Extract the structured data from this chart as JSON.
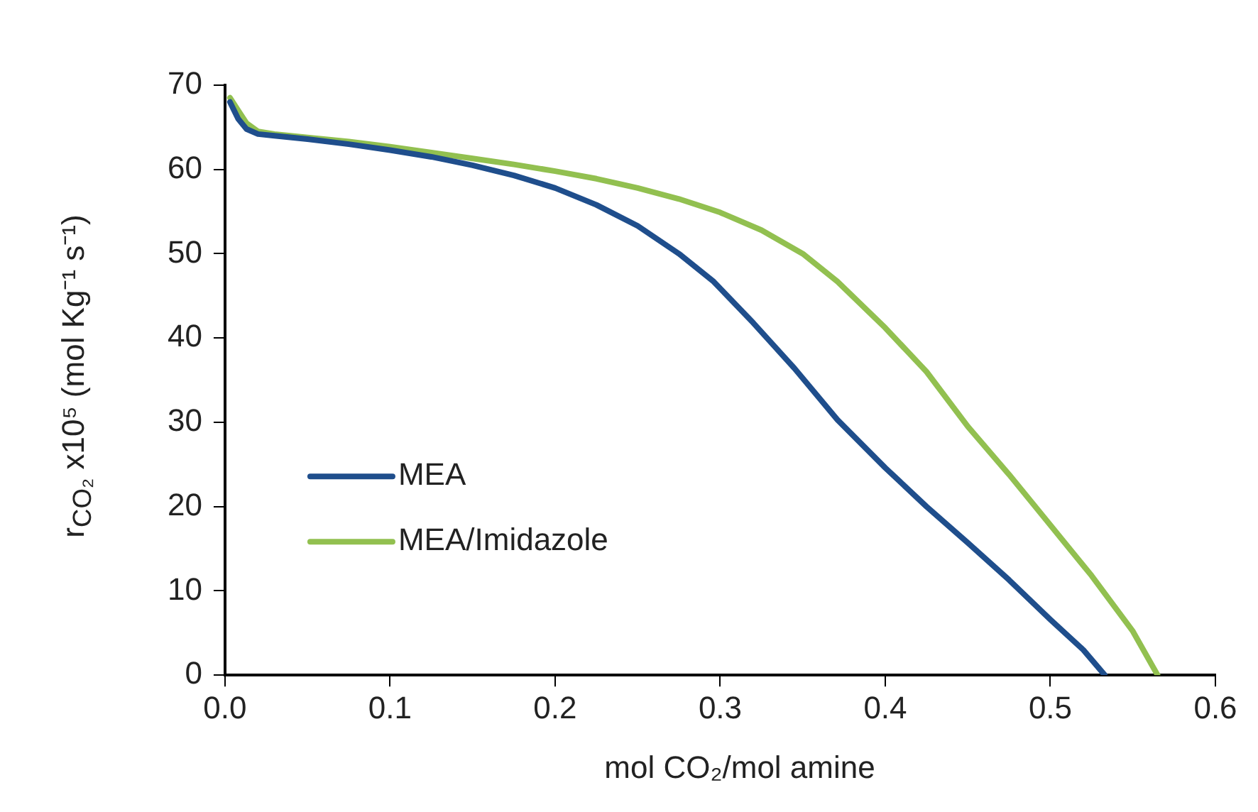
{
  "chart_data": {
    "type": "line",
    "xlabel": "mol CO₂/mol amine",
    "ylabel": "r$_{CO₂}$ x10⁵ (mol Kg⁻¹ s⁻¹)",
    "xlim": [
      0,
      0.6
    ],
    "xticks": [
      {
        "value": 0,
        "label": "0.0"
      },
      0.1,
      0.2,
      0.3,
      0.4,
      0.5,
      0.6
    ],
    "ylim": [
      0,
      70
    ],
    "yticks": [
      0,
      10,
      20,
      30,
      40,
      50,
      60,
      70
    ],
    "grid": false,
    "legend": "bottom left",
    "marker": "none",
    "line_style": "solid",
    "series": [
      {
        "name": "MEA",
        "color": "#1f4e8c",
        "x": [
          0.003,
          0.008,
          0.013,
          0.02,
          0.03,
          0.05,
          0.075,
          0.1,
          0.125,
          0.15,
          0.175,
          0.2,
          0.225,
          0.25,
          0.275,
          0.296,
          0.32,
          0.345,
          0.371,
          0.4,
          0.425,
          0.45,
          0.475,
          0.5,
          0.52,
          0.533
        ],
        "values": [
          68,
          66,
          64.8,
          64.2,
          64,
          63.6,
          63,
          62.3,
          61.5,
          60.5,
          59.3,
          57.8,
          55.8,
          53.3,
          50,
          46.7,
          41.8,
          36.4,
          30.3,
          24.6,
          20,
          15.7,
          11.3,
          6.6,
          3,
          0
        ]
      },
      {
        "name": "MEA/Imidazole",
        "color": "#92c050",
        "x": [
          0.003,
          0.008,
          0.013,
          0.02,
          0.03,
          0.05,
          0.075,
          0.1,
          0.125,
          0.15,
          0.175,
          0.2,
          0.225,
          0.25,
          0.275,
          0.3,
          0.325,
          0.35,
          0.371,
          0.4,
          0.425,
          0.45,
          0.475,
          0.5,
          0.525,
          0.55,
          0.565
        ],
        "values": [
          68.5,
          67,
          65.5,
          64.5,
          64.2,
          63.8,
          63.3,
          62.7,
          62,
          61.3,
          60.6,
          59.8,
          58.9,
          57.8,
          56.5,
          54.9,
          52.8,
          50,
          46.7,
          41.2,
          36,
          29.5,
          23.8,
          17.8,
          11.8,
          5.2,
          0
        ]
      }
    ]
  }
}
